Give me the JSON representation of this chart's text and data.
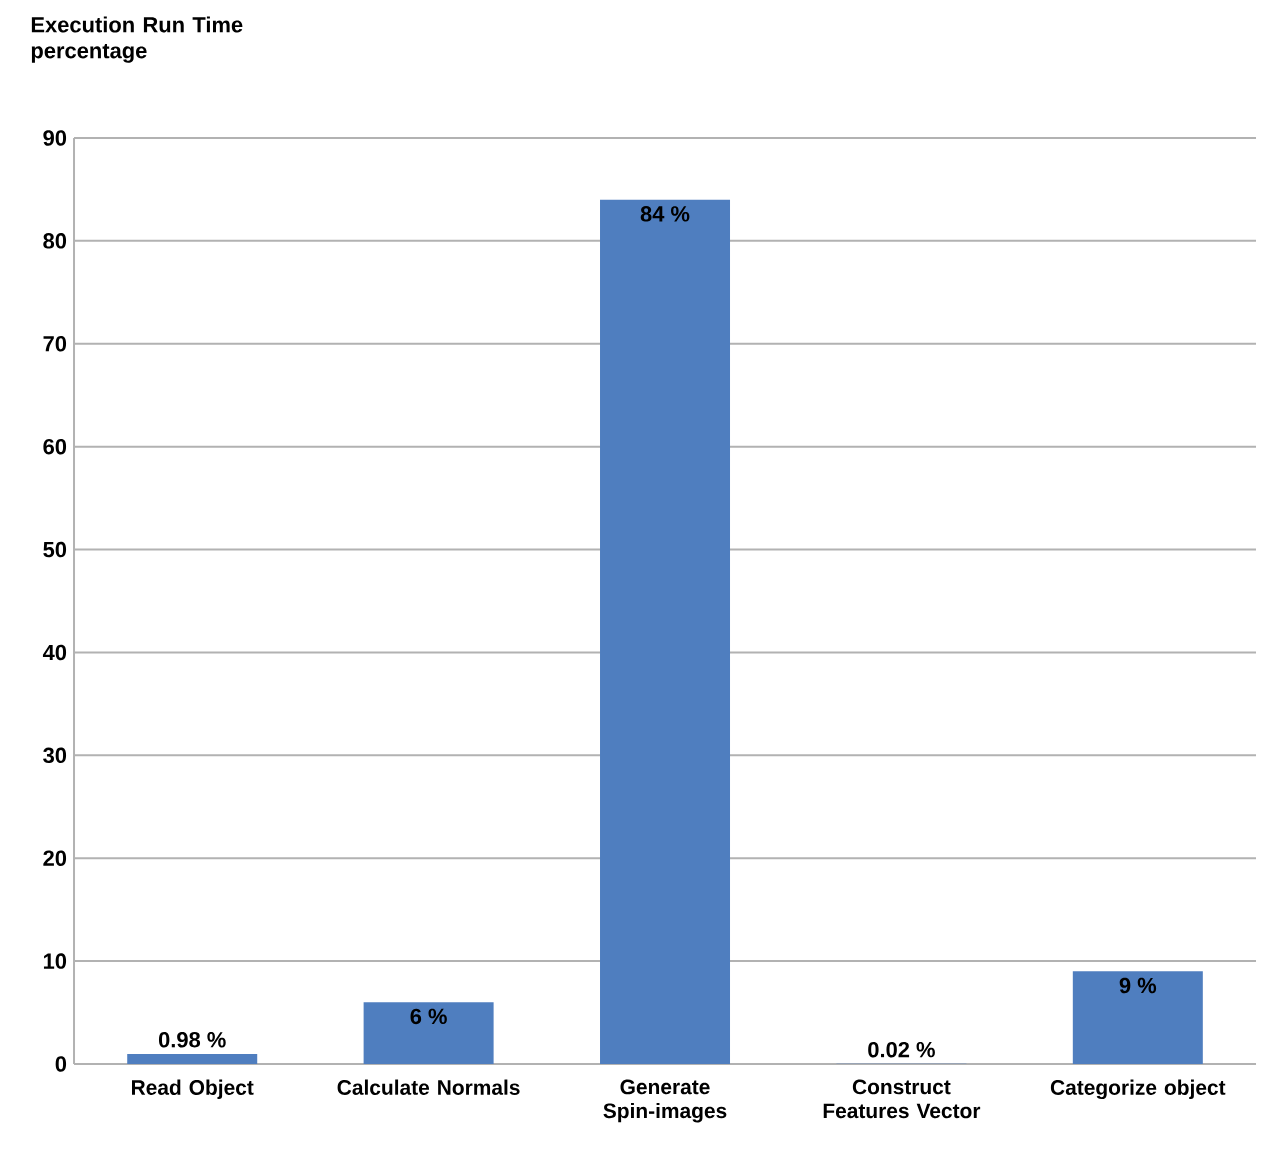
{
  "chart_data": {
    "type": "bar",
    "ylabel": "Execution Run Time percentage",
    "categories": [
      "Read Object",
      "Calculate Normals",
      "Generate Spin-images",
      "Construct Features Vector",
      "Categorize object"
    ],
    "values": [
      0.98,
      6,
      84,
      0.02,
      9
    ],
    "value_labels": [
      "0.98 %",
      "6 %",
      "84 %",
      "0.02 %",
      "9 %"
    ],
    "color": "#4f7ebf",
    "ylim": [
      0,
      90
    ],
    "yticks": [
      0,
      10,
      20,
      30,
      40,
      50,
      60,
      70,
      80,
      90
    ],
    "grid": "y"
  }
}
